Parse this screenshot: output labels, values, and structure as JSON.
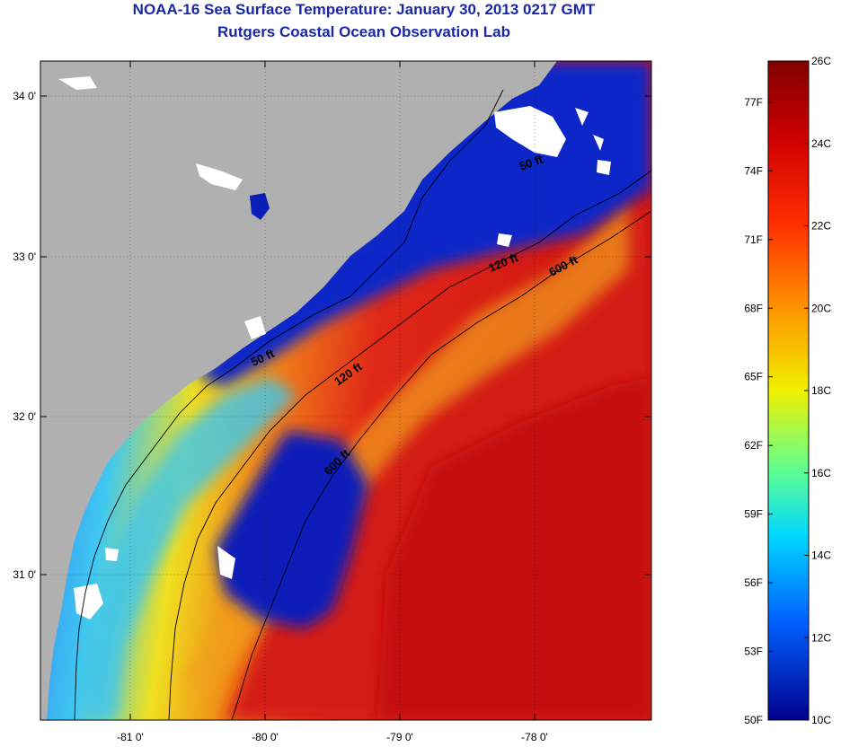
{
  "title": "NOAA-16 Sea Surface Temperature:  January 30, 2013 0217 GMT",
  "subtitle": "Rutgers Coastal Ocean Observation Lab",
  "lat_labels": [
    "34 0'",
    "33 0'",
    "32 0'",
    "31 0'"
  ],
  "lon_labels": [
    "-81 0'",
    "-80 0'",
    "-79 0'",
    "-78 0'"
  ],
  "contours": {
    "c50_a": "50 ft",
    "c50_b": "50 ft",
    "c120_a": "120 ft",
    "c120_b": "120 ft",
    "c600_a": "600 ft",
    "c600_b": "600 ft"
  },
  "colorbar": {
    "celsius": [
      "26C",
      "24C",
      "22C",
      "20C",
      "18C",
      "16C",
      "14C",
      "12C",
      "10C"
    ],
    "fahrenheit": [
      "77F",
      "74F",
      "71F",
      "68F",
      "65F",
      "62F",
      "59F",
      "56F",
      "53F",
      "50F"
    ],
    "range_c": [
      10,
      26
    ]
  },
  "colors": {
    "land": "#b0b0b0",
    "cloud": "#ffffff",
    "title": "#1a28a8"
  }
}
